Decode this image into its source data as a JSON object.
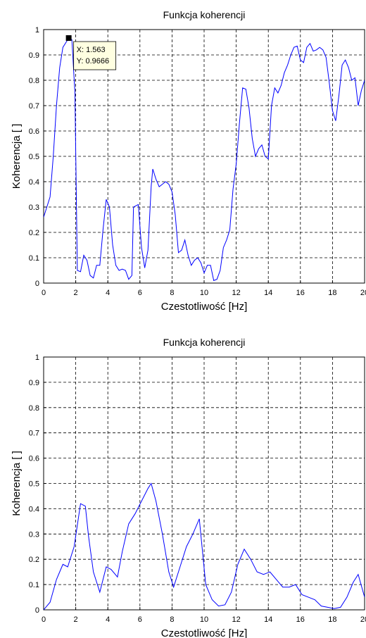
{
  "chart_data": [
    {
      "type": "line",
      "title": "Funkcja koherencji",
      "xlabel": "Czestotliwość [Hz]",
      "ylabel": "Koherencja [ ]",
      "xlim": [
        0,
        20
      ],
      "ylim": [
        0,
        1
      ],
      "xticks": [
        0,
        2,
        4,
        6,
        8,
        10,
        12,
        14,
        16,
        18,
        20
      ],
      "yticks": [
        0,
        0.1,
        0.2,
        0.3,
        0.4,
        0.5,
        0.6,
        0.7,
        0.8,
        0.9,
        1
      ],
      "grid": true,
      "color": "#0000ff",
      "x": [
        0,
        0.4,
        0.6,
        0.8,
        1.0,
        1.2,
        1.563,
        1.76,
        1.95,
        2.1,
        2.3,
        2.5,
        2.7,
        2.9,
        3.1,
        3.3,
        3.5,
        3.7,
        3.9,
        4.1,
        4.3,
        4.5,
        4.7,
        4.9,
        5.1,
        5.3,
        5.5,
        5.6,
        5.9,
        6.1,
        6.3,
        6.5,
        6.7,
        6.8,
        7.0,
        7.2,
        7.4,
        7.6,
        7.8,
        8.0,
        8.2,
        8.4,
        8.6,
        8.8,
        9.0,
        9.2,
        9.4,
        9.6,
        9.8,
        10.0,
        10.2,
        10.4,
        10.6,
        10.8,
        11.0,
        11.2,
        11.4,
        11.6,
        11.8,
        12.0,
        12.2,
        12.4,
        12.6,
        12.8,
        13.0,
        13.2,
        13.4,
        13.6,
        13.8,
        14.0,
        14.2,
        14.4,
        14.6,
        14.8,
        15.0,
        15.2,
        15.4,
        15.6,
        15.8,
        16.0,
        16.2,
        16.4,
        16.6,
        16.8,
        17.0,
        17.2,
        17.4,
        17.6,
        17.8,
        18.0,
        18.2,
        18.4,
        18.6,
        18.8,
        19.0,
        19.2,
        19.4,
        19.6,
        19.8,
        20.0
      ],
      "values": [
        0.26,
        0.34,
        0.5,
        0.7,
        0.85,
        0.93,
        0.9666,
        0.96,
        0.75,
        0.05,
        0.045,
        0.11,
        0.09,
        0.03,
        0.02,
        0.07,
        0.07,
        0.21,
        0.33,
        0.3,
        0.15,
        0.07,
        0.05,
        0.055,
        0.05,
        0.015,
        0.03,
        0.3,
        0.31,
        0.14,
        0.06,
        0.13,
        0.38,
        0.45,
        0.41,
        0.38,
        0.39,
        0.4,
        0.39,
        0.36,
        0.27,
        0.12,
        0.13,
        0.17,
        0.11,
        0.07,
        0.09,
        0.1,
        0.08,
        0.04,
        0.07,
        0.07,
        0.01,
        0.015,
        0.05,
        0.14,
        0.17,
        0.21,
        0.37,
        0.47,
        0.63,
        0.77,
        0.765,
        0.69,
        0.57,
        0.5,
        0.53,
        0.545,
        0.5,
        0.49,
        0.7,
        0.77,
        0.75,
        0.78,
        0.83,
        0.86,
        0.9,
        0.93,
        0.935,
        0.88,
        0.87,
        0.93,
        0.945,
        0.915,
        0.92,
        0.93,
        0.92,
        0.89,
        0.79,
        0.68,
        0.64,
        0.74,
        0.86,
        0.88,
        0.85,
        0.8,
        0.81,
        0.7,
        0.76,
        0.8
      ],
      "annotation": {
        "x": 1.563,
        "y": 0.9666,
        "label_x": "X: 1.563",
        "label_y": "Y: 0.9666"
      }
    },
    {
      "type": "line",
      "title": "Funkcja koherencji",
      "xlabel": "Czestotliwość [Hz]",
      "ylabel": "Koherencja [ ]",
      "xlim": [
        0,
        20
      ],
      "ylim": [
        0,
        1
      ],
      "xticks": [
        0,
        2,
        4,
        6,
        8,
        10,
        12,
        14,
        16,
        18,
        20
      ],
      "yticks": [
        0,
        0.1,
        0.2,
        0.3,
        0.4,
        0.5,
        0.6,
        0.7,
        0.8,
        0.9,
        1
      ],
      "grid": true,
      "color": "#0000ff",
      "x": [
        0,
        0.4,
        0.8,
        1.2,
        1.5,
        1.9,
        2.3,
        2.6,
        2.8,
        3.1,
        3.5,
        3.9,
        4.2,
        4.6,
        4.9,
        5.3,
        5.7,
        6.1,
        6.5,
        6.7,
        7.0,
        7.4,
        7.8,
        8.1,
        8.5,
        8.9,
        9.3,
        9.7,
        10.1,
        10.5,
        10.9,
        11.3,
        11.7,
        12.1,
        12.5,
        12.9,
        13.3,
        13.7,
        14.1,
        14.5,
        14.9,
        15.3,
        15.7,
        16.1,
        16.5,
        16.9,
        17.3,
        17.7,
        18.1,
        18.5,
        18.9,
        19.3,
        19.6,
        20
      ],
      "values": [
        0,
        0.03,
        0.12,
        0.18,
        0.17,
        0.25,
        0.42,
        0.41,
        0.29,
        0.15,
        0.07,
        0.17,
        0.16,
        0.13,
        0.23,
        0.34,
        0.38,
        0.43,
        0.48,
        0.5,
        0.43,
        0.3,
        0.15,
        0.09,
        0.17,
        0.25,
        0.3,
        0.36,
        0.1,
        0.04,
        0.015,
        0.02,
        0.07,
        0.18,
        0.24,
        0.2,
        0.15,
        0.14,
        0.15,
        0.12,
        0.09,
        0.09,
        0.1,
        0.06,
        0.05,
        0.04,
        0.015,
        0.01,
        0.005,
        0.01,
        0.05,
        0.11,
        0.14,
        0.05
      ]
    }
  ]
}
